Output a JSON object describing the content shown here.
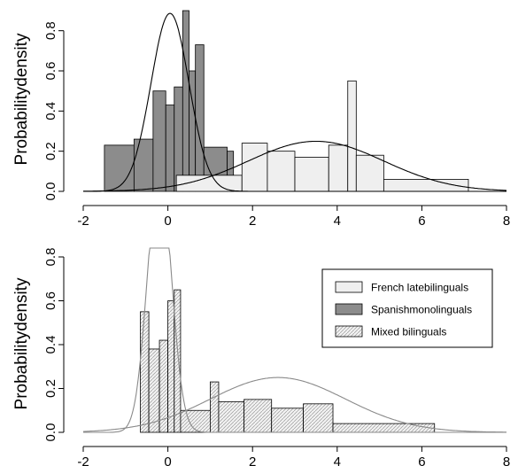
{
  "chart_data": [
    {
      "type": "histogram",
      "ylabel": "Probabilitydensity",
      "xlim": [
        -2,
        8
      ],
      "ylim": [
        0,
        0.9
      ],
      "x_ticks": [
        "-2",
        "0",
        "2",
        "4",
        "6",
        "8"
      ],
      "y_ticks": [
        "0.0",
        "0.2",
        "0.4",
        "0.6",
        "0.8"
      ],
      "series": [
        {
          "color": "#8c8c8c",
          "bars": [
            {
              "x0": -1.5,
              "x1": -0.8,
              "y": 0.23
            },
            {
              "x0": -0.8,
              "x1": -0.35,
              "y": 0.26
            },
            {
              "x0": -0.35,
              "x1": -0.05,
              "y": 0.5
            },
            {
              "x0": -0.05,
              "x1": 0.15,
              "y": 0.43
            },
            {
              "x0": 0.15,
              "x1": 0.35,
              "y": 0.52
            },
            {
              "x0": 0.35,
              "x1": 0.5,
              "y": 0.9
            },
            {
              "x0": 0.5,
              "x1": 0.65,
              "y": 0.6
            },
            {
              "x0": 0.65,
              "x1": 0.85,
              "y": 0.73
            },
            {
              "x0": 0.85,
              "x1": 1.4,
              "y": 0.22
            },
            {
              "x0": 1.4,
              "x1": 1.55,
              "y": 0.2
            }
          ],
          "curve": {
            "mean": 0.05,
            "sd": 0.45
          }
        },
        {
          "color": "#efefef",
          "bars": [
            {
              "x0": 0.2,
              "x1": 1.75,
              "y": 0.08
            },
            {
              "x0": 1.75,
              "x1": 2.35,
              "y": 0.24
            },
            {
              "x0": 2.35,
              "x1": 3.0,
              "y": 0.2
            },
            {
              "x0": 3.0,
              "x1": 3.8,
              "y": 0.17
            },
            {
              "x0": 3.8,
              "x1": 4.25,
              "y": 0.23
            },
            {
              "x0": 4.25,
              "x1": 4.45,
              "y": 0.55
            },
            {
              "x0": 4.45,
              "x1": 5.1,
              "y": 0.18
            },
            {
              "x0": 5.1,
              "x1": 7.1,
              "y": 0.06
            }
          ],
          "curve": {
            "mean": 3.5,
            "sd": 1.6
          }
        }
      ]
    },
    {
      "type": "histogram",
      "ylabel": "Probabilitydensity",
      "xlim": [
        -2,
        8
      ],
      "ylim": [
        0,
        0.8
      ],
      "x_ticks": [
        "-2",
        "0",
        "2",
        "4",
        "6",
        "8"
      ],
      "y_ticks": [
        "0.0",
        "0.2",
        "0.4",
        "0.6",
        "0.8"
      ],
      "legend": {
        "position": "top-right",
        "entries": [
          {
            "label": "French latebilinguals",
            "fill": "#efefef"
          },
          {
            "label": "Spanishmonolinguals",
            "fill": "#8c8c8c"
          },
          {
            "label": "Mixed bilinguals",
            "fill": "hatch"
          }
        ]
      },
      "series": [
        {
          "color": "hatch",
          "bars": [
            {
              "x0": -0.65,
              "x1": -0.45,
              "y": 0.55
            },
            {
              "x0": -0.45,
              "x1": -0.2,
              "y": 0.38
            },
            {
              "x0": -0.2,
              "x1": 0.0,
              "y": 0.42
            },
            {
              "x0": 0.0,
              "x1": 0.15,
              "y": 0.6
            },
            {
              "x0": 0.15,
              "x1": 0.3,
              "y": 0.65
            },
            {
              "x0": 0.3,
              "x1": 1.0,
              "y": 0.1
            },
            {
              "x0": 1.0,
              "x1": 1.2,
              "y": 0.23
            },
            {
              "x0": 1.2,
              "x1": 1.8,
              "y": 0.14
            },
            {
              "x0": 1.8,
              "x1": 2.45,
              "y": 0.15
            },
            {
              "x0": 2.45,
              "x1": 3.2,
              "y": 0.11
            },
            {
              "x0": 3.2,
              "x1": 3.9,
              "y": 0.13
            },
            {
              "x0": 3.9,
              "x1": 6.3,
              "y": 0.04
            }
          ],
          "curves": [
            {
              "mean": -0.2,
              "sd": 0.28,
              "peak": 1.2
            },
            {
              "mean": 2.6,
              "sd": 1.6,
              "peak": 0.25
            }
          ]
        }
      ]
    }
  ]
}
